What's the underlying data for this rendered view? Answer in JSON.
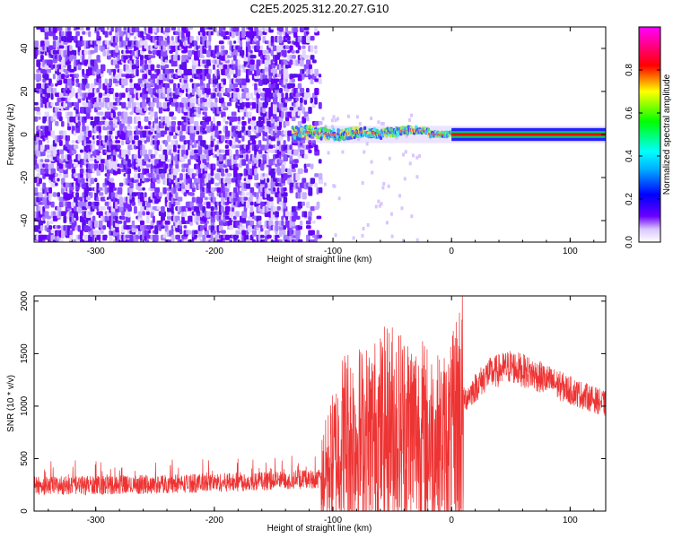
{
  "title": "C2E5.2025.312.20.27.G10",
  "colorbar": {
    "label": "Normalized spectral amplitude",
    "range": [
      0,
      1
    ],
    "ticks": [
      "0.0",
      "0.2",
      "0.4",
      "0.6",
      "0.8"
    ]
  },
  "chart_data": [
    {
      "type": "heatmap",
      "name": "spectrogram",
      "xlabel": "Height of straight line (km)",
      "ylabel": "Frequency (Hz)",
      "xlim": [
        -352,
        130
      ],
      "ylim": [
        -50,
        50
      ],
      "xticks": [
        -300,
        -200,
        -100,
        0,
        100
      ],
      "yticks": [
        -40,
        -20,
        0,
        20,
        40
      ],
      "colormap": [
        "#ffffff",
        "#6a00ff",
        "#0000ff",
        "#00ffff",
        "#00ff00",
        "#ffff00",
        "#ff0000",
        "#ff00ff"
      ],
      "regions": [
        {
          "x": [
            -352,
            -112
          ],
          "y": [
            -50,
            50
          ],
          "description_value": "scattered",
          "amplitude": 0.05
        },
        {
          "x": [
            -135,
            0
          ],
          "y": [
            -6,
            6
          ],
          "description_value": "transition",
          "amplitude": 0.6
        },
        {
          "x": [
            0,
            130
          ],
          "y": [
            -0.6,
            0.6
          ],
          "description_value": "carrier",
          "amplitude": 1.0
        }
      ]
    },
    {
      "type": "line",
      "name": "snr",
      "xlabel": "Height of straight line (km)",
      "ylabel": "SNR (10 * v/v)",
      "xlim": [
        -352,
        130
      ],
      "ylim": [
        0,
        2050
      ],
      "xticks": [
        -300,
        -200,
        -100,
        0,
        100
      ],
      "yticks": [
        0,
        500,
        1000,
        1500,
        2000
      ],
      "color": "#ee3333",
      "profile_x": [
        -352,
        -300,
        -250,
        -200,
        -150,
        -110,
        -100,
        -90,
        -70,
        -50,
        -30,
        -10,
        0,
        10,
        30,
        50,
        70,
        100,
        130
      ],
      "profile_y": [
        240,
        245,
        255,
        270,
        290,
        310,
        500,
        700,
        700,
        800,
        750,
        650,
        700,
        1050,
        1300,
        1380,
        1300,
        1150,
        1020
      ]
    }
  ]
}
